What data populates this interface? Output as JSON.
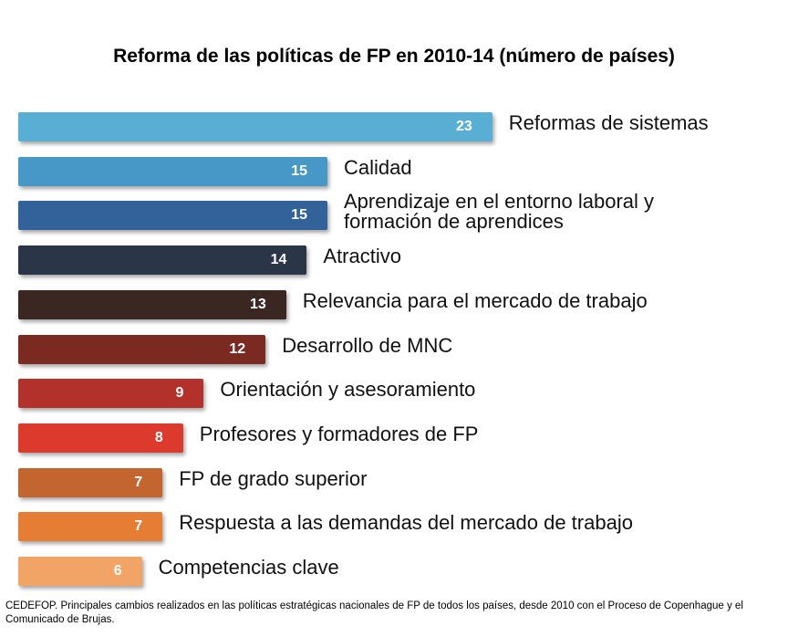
{
  "chart_data": {
    "type": "hbar",
    "title": "Reforma de las políticas de FP en 2010-14 (número de países)",
    "categories": [
      "Reformas de sistemas",
      "Calidad",
      "Aprendizaje en el entorno laboral y formación de aprendices",
      "Atractivo",
      "Relevancia para el mercado de trabajo",
      "Desarrollo de MNC",
      "Orientación y asesoramiento",
      "Profesores y formadores de FP",
      "FP de grado superior",
      "Respuesta a las demandas del mercado de trabajo",
      "Competencias clave"
    ],
    "values": [
      23,
      15,
      15,
      14,
      13,
      12,
      9,
      8,
      7,
      7,
      6
    ],
    "colors": [
      "#58aed3",
      "#4798c6",
      "#33619a",
      "#2a3547",
      "#3b2722",
      "#7b2a22",
      "#b2312a",
      "#dc3a2c",
      "#c2652e",
      "#e57d34",
      "#f2a366"
    ],
    "source": "CEDEFOP. Principales cambios realizados en las políticas estratégicas nacionales de FP de todos los países, desde 2010 con el Proceso de Copenhague y el Comunicado de Brujas."
  }
}
